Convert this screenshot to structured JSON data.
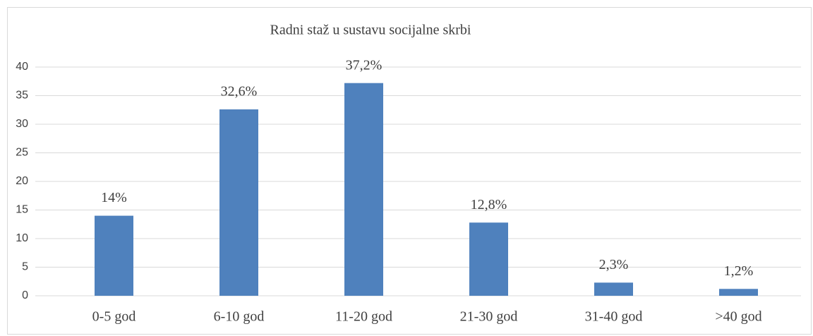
{
  "chart_data": {
    "type": "bar",
    "title": "Radni staž u sustavu socijalne skrbi",
    "categories": [
      "0-5 god",
      "6-10 god",
      "11-20 god",
      "21-30 god",
      "31-40 god",
      ">40 god"
    ],
    "values": [
      14,
      32.6,
      37.2,
      12.8,
      2.3,
      1.2
    ],
    "value_labels": [
      "14%",
      "32,6%",
      "37,2%",
      "12,8%",
      "2,3%",
      "1,2%"
    ],
    "color": "#4f81bd",
    "ylim": [
      0,
      40
    ],
    "yticks": [
      0,
      5,
      10,
      15,
      20,
      25,
      30,
      35,
      40
    ],
    "grid": true
  }
}
